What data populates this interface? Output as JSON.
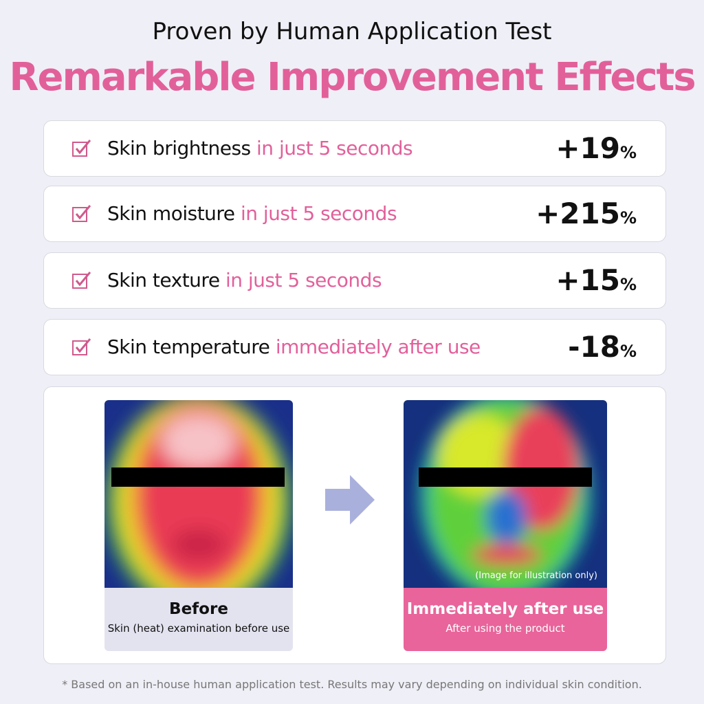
{
  "header": {
    "subtitle": "Proven by Human Application Test",
    "title": "Remarkable Improvement Effects"
  },
  "items": [
    {
      "label": "Skin brightness",
      "detail": "in just 5 seconds",
      "value": "+19",
      "unit": "%"
    },
    {
      "label": "Skin moisture",
      "detail": "in just 5 seconds",
      "value": "+215",
      "unit": "%"
    },
    {
      "label": "Skin texture",
      "detail": "in just 5 seconds",
      "value": "+15",
      "unit": "%"
    },
    {
      "label": "Skin temperature",
      "detail": "immediately after use",
      "value": "-18",
      "unit": "%"
    }
  ],
  "comparison": {
    "before": {
      "title": "Before",
      "caption": "Skin (heat) examination before use"
    },
    "after": {
      "title": "Immediately after use",
      "caption": "After using the product",
      "note": "(Image for illustration only)"
    }
  },
  "footnote": "* Based on an in-house human application test. Results may vary depending on individual skin condition."
}
